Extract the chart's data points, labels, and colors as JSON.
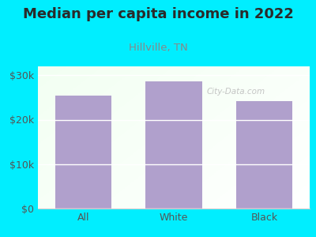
{
  "title": "Median per capita income in 2022",
  "subtitle": "Hillville, TN",
  "categories": [
    "All",
    "White",
    "Black"
  ],
  "values": [
    25500,
    28700,
    24200
  ],
  "bar_color": "#b0a0cc",
  "background_color": "#00eeff",
  "title_color": "#2a2a2a",
  "subtitle_color": "#888888",
  "tick_label_color": "#555555",
  "ylim": [
    0,
    32000
  ],
  "yticks": [
    0,
    10000,
    20000,
    30000
  ],
  "ytick_labels": [
    "$0",
    "$10k",
    "$20k",
    "$30k"
  ],
  "watermark": "City-Data.com",
  "title_fontsize": 13,
  "subtitle_fontsize": 9.5,
  "tick_fontsize": 9
}
